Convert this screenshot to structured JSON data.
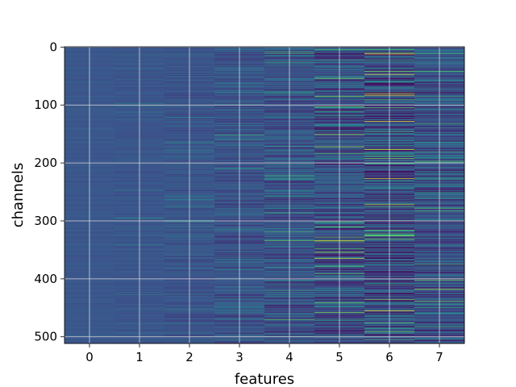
{
  "chart_data": {
    "type": "heatmap",
    "title": "",
    "xlabel": "features",
    "ylabel": "channels",
    "x_ticks": [
      0,
      1,
      2,
      3,
      4,
      5,
      6,
      7
    ],
    "y_ticks": [
      0,
      100,
      200,
      300,
      400,
      500
    ],
    "xlim": [
      -0.5,
      7.5
    ],
    "ylim": [
      511.5,
      -0.5
    ],
    "y_inverted": true,
    "n_rows": 512,
    "n_cols": 8,
    "grid": true,
    "colormap": "viridis",
    "colorbar": false,
    "column_contrast": [
      0.04,
      0.08,
      0.13,
      0.2,
      0.28,
      0.4,
      0.5,
      0.35
    ],
    "highlights": [
      {
        "col": 5,
        "row": 172,
        "value": 0.85
      },
      {
        "col": 5,
        "row": 458,
        "value": 0.8
      },
      {
        "col": 5,
        "row": 335,
        "value": 0.7
      },
      {
        "col": 6,
        "row": 4,
        "value": 0.7
      },
      {
        "col": 6,
        "row": 91,
        "value": 0.68
      },
      {
        "col": 6,
        "row": 272,
        "value": 0.9
      },
      {
        "col": 6,
        "row": 410,
        "value": 0.6
      },
      {
        "col": 7,
        "row": 283,
        "value": 0.7
      },
      {
        "col": 7,
        "row": 375,
        "value": 0.65
      },
      {
        "col": 1,
        "row": 295,
        "value": 0.5
      },
      {
        "col": 3,
        "row": 160,
        "value": 0.55
      },
      {
        "col": 4,
        "row": 380,
        "value": 0.55
      }
    ]
  }
}
